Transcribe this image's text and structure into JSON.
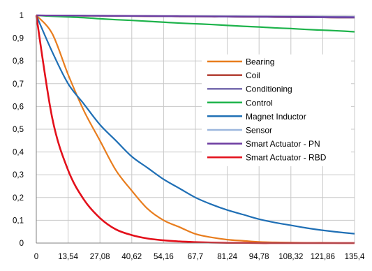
{
  "chart_data": {
    "type": "line",
    "title": "",
    "xlabel": "",
    "ylabel": "",
    "x_ticks": [
      "0",
      "13,54",
      "27,08",
      "40,62",
      "54,16",
      "67,7",
      "81,24",
      "94,78",
      "108,32",
      "121,86",
      "135,4"
    ],
    "y_ticks": [
      "0",
      "0,1",
      "0,2",
      "0,3",
      "0,4",
      "0,5",
      "0,6",
      "0,7",
      "0,8",
      "0,9",
      "1"
    ],
    "xlim": [
      0,
      135.4
    ],
    "ylim": [
      0,
      1
    ],
    "grid": true,
    "legend_position": "right",
    "x": [
      0,
      6.77,
      13.54,
      20.31,
      27.08,
      33.85,
      40.62,
      47.39,
      54.16,
      60.93,
      67.7,
      74.47,
      81.24,
      88.01,
      94.78,
      101.55,
      108.32,
      115.09,
      121.86,
      128.63,
      135.4
    ],
    "series": [
      {
        "name": "Bearing",
        "color": "#E87D1E",
        "values": [
          1,
          0.92,
          0.74,
          0.58,
          0.45,
          0.32,
          0.23,
          0.15,
          0.1,
          0.07,
          0.04,
          0.025,
          0.015,
          0.01,
          0.005,
          0.003,
          0.002,
          0.001,
          0.001,
          0,
          0
        ]
      },
      {
        "name": "Coil",
        "color": "#B03A2E",
        "values": [
          1,
          0.999,
          0.999,
          0.998,
          0.998,
          0.997,
          0.997,
          0.996,
          0.996,
          0.995,
          0.995,
          0.994,
          0.994,
          0.993,
          0.993,
          0.992,
          0.992,
          0.991,
          0.991,
          0.99,
          0.99
        ]
      },
      {
        "name": "Conditioning",
        "color": "#7A6FB0",
        "values": [
          1,
          0.9995,
          0.999,
          0.9985,
          0.998,
          0.9975,
          0.997,
          0.9965,
          0.996,
          0.9955,
          0.995,
          0.9945,
          0.994,
          0.9935,
          0.993,
          0.9925,
          0.992,
          0.9915,
          0.991,
          0.9905,
          0.99
        ]
      },
      {
        "name": "Control",
        "color": "#1DB34B",
        "values": [
          1,
          0.996,
          0.993,
          0.99,
          0.985,
          0.981,
          0.978,
          0.974,
          0.97,
          0.966,
          0.963,
          0.96,
          0.956,
          0.952,
          0.949,
          0.945,
          0.942,
          0.938,
          0.935,
          0.932,
          0.928
        ]
      },
      {
        "name": "Magnet Inductor",
        "color": "#1F6FB5",
        "values": [
          1,
          0.84,
          0.7,
          0.61,
          0.52,
          0.45,
          0.38,
          0.33,
          0.28,
          0.24,
          0.2,
          0.17,
          0.145,
          0.125,
          0.105,
          0.09,
          0.078,
          0.066,
          0.056,
          0.048,
          0.041
        ]
      },
      {
        "name": "Sensor",
        "color": "#9DB7DE",
        "values": [
          1,
          0.9997,
          0.9994,
          0.9991,
          0.9988,
          0.9985,
          0.9982,
          0.9979,
          0.9976,
          0.9973,
          0.997,
          0.9967,
          0.9964,
          0.9961,
          0.9958,
          0.9955,
          0.9952,
          0.9949,
          0.9946,
          0.9943,
          0.994
        ]
      },
      {
        "name": "Smart Actuator - PN",
        "color": "#6C3CA0",
        "values": [
          1,
          0.9996,
          0.9992,
          0.9988,
          0.9984,
          0.998,
          0.9976,
          0.9972,
          0.9968,
          0.9964,
          0.996,
          0.9956,
          0.9952,
          0.9948,
          0.9944,
          0.994,
          0.9936,
          0.9932,
          0.9928,
          0.9924,
          0.992
        ]
      },
      {
        "name": "Smart Actuator - RBD",
        "color": "#E3101B",
        "values": [
          1,
          0.55,
          0.32,
          0.19,
          0.11,
          0.06,
          0.035,
          0.02,
          0.012,
          0.007,
          0.004,
          0.002,
          0.001,
          0.001,
          0,
          0,
          0,
          0,
          0,
          0,
          0
        ]
      }
    ]
  }
}
